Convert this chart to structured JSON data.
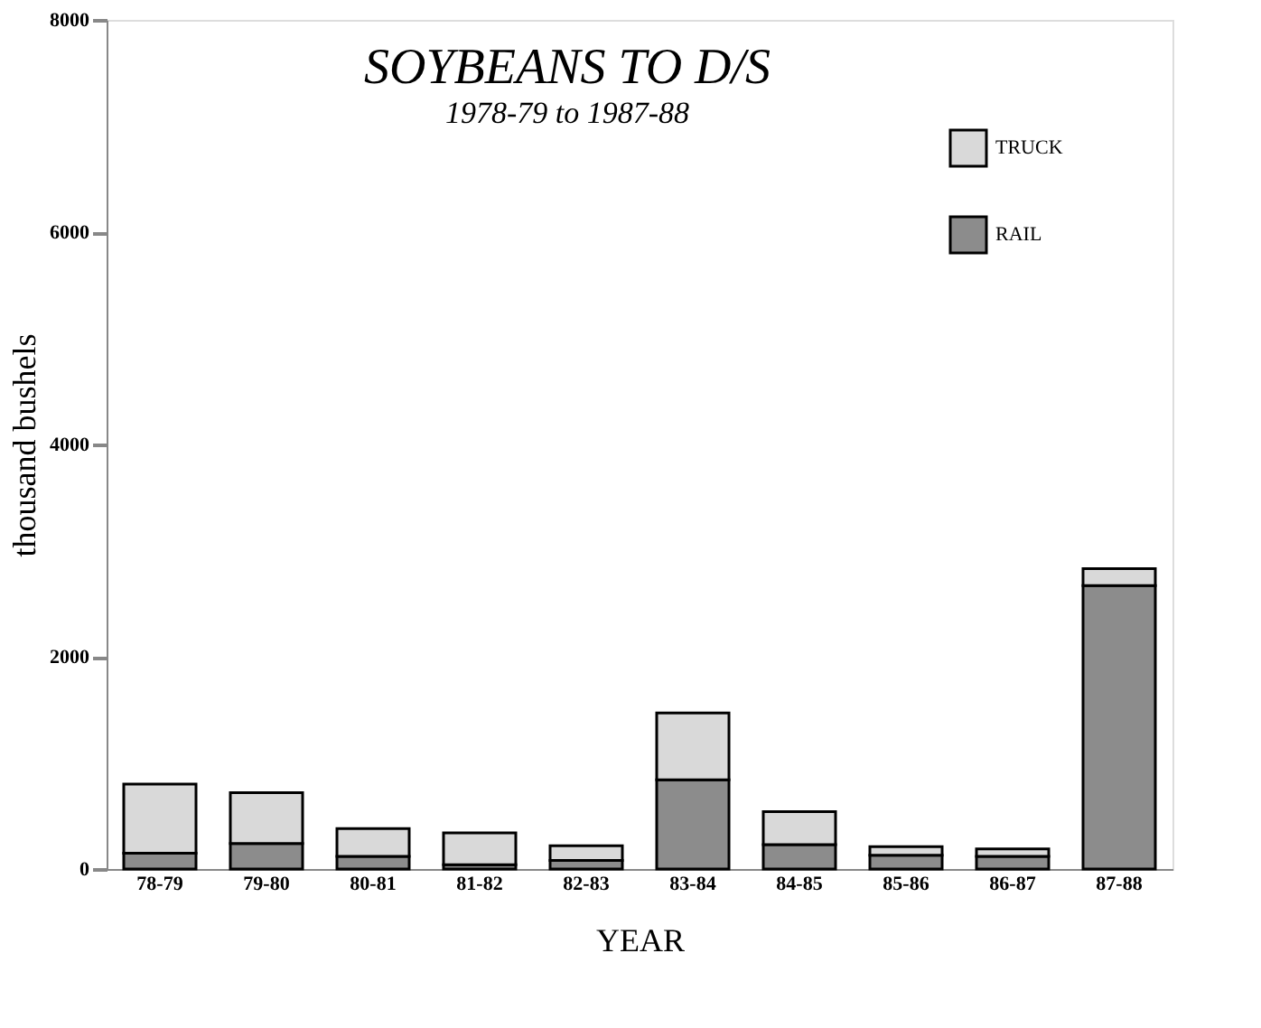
{
  "chart_data": {
    "type": "bar",
    "title": "SOYBEANS TO D/S",
    "subtitle": "1978-79 to 1987-88",
    "xlabel": "YEAR",
    "ylabel": "thousand bushels",
    "categories": [
      "78-79",
      "79-80",
      "80-81",
      "81-82",
      "82-83",
      "83-84",
      "84-85",
      "85-86",
      "86-87",
      "87-88"
    ],
    "stacked": true,
    "series": [
      {
        "name": "RAIL",
        "color": "#8c8c8c",
        "values": [
          150,
          240,
          120,
          40,
          80,
          840,
          230,
          130,
          120,
          2670
        ]
      },
      {
        "name": "TRUCK",
        "color": "#d9d9d9",
        "values": [
          650,
          480,
          260,
          300,
          140,
          630,
          310,
          80,
          70,
          160
        ]
      }
    ],
    "ylim": [
      0,
      8000
    ],
    "yticks": [
      0,
      2000,
      4000,
      6000,
      8000
    ],
    "grid": false,
    "legend": "top right"
  }
}
